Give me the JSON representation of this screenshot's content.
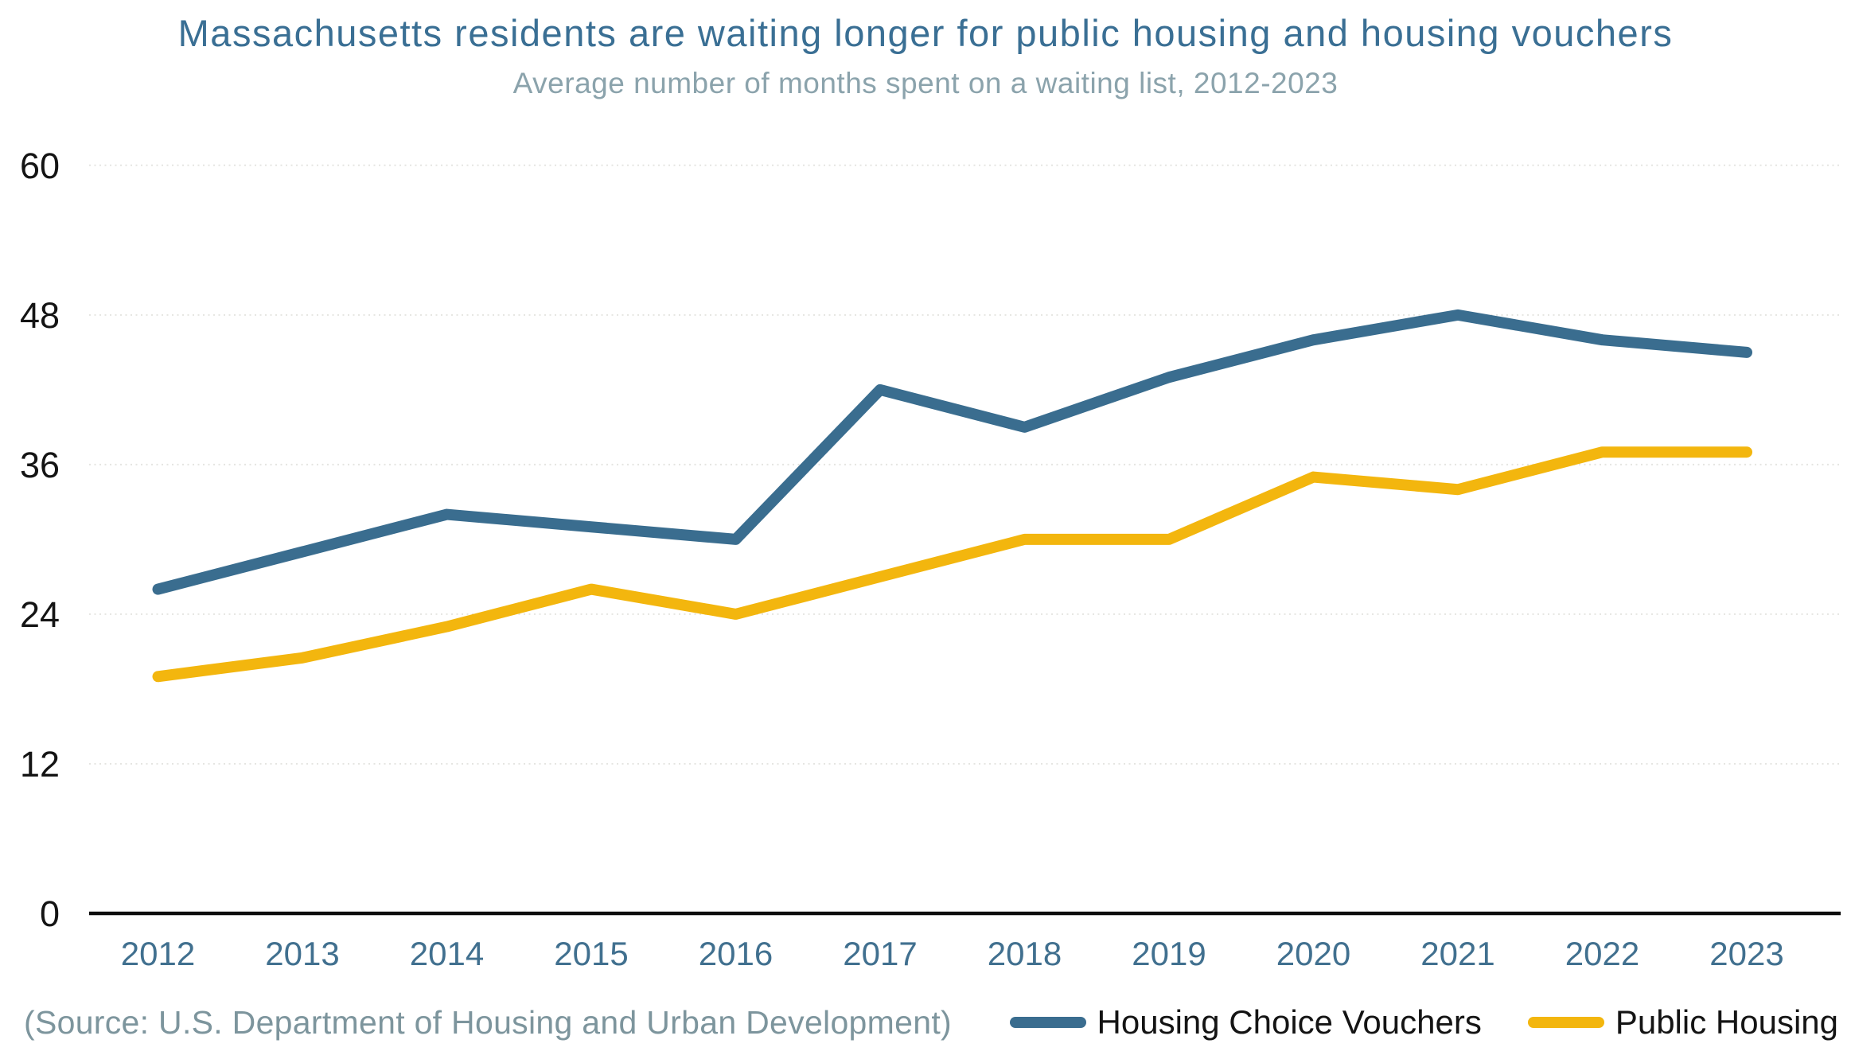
{
  "header": {
    "title": "Massachusetts residents are waiting longer for public housing and housing vouchers",
    "subtitle": "Average number of months spent on a waiting list, 2012-2023"
  },
  "chart_data": {
    "type": "line",
    "title": "Massachusetts residents are waiting longer for public housing and housing vouchers",
    "subtitle": "Average number of months spent on a waiting list, 2012-2023",
    "x": [
      2012,
      2013,
      2014,
      2015,
      2016,
      2017,
      2018,
      2019,
      2020,
      2021,
      2022,
      2023
    ],
    "series": [
      {
        "name": "Housing Choice Vouchers",
        "color": "#3A6D8F",
        "values": [
          26,
          29,
          32,
          31,
          30,
          42,
          39,
          43,
          46,
          48,
          46,
          45
        ]
      },
      {
        "name": "Public Housing",
        "color": "#F3B60E",
        "values": [
          19,
          20.5,
          23,
          26,
          24,
          27,
          30,
          30,
          35,
          34,
          37,
          37
        ]
      }
    ],
    "xlabel": "",
    "ylabel": "",
    "ylim": [
      0,
      60
    ],
    "yticks": [
      0,
      12,
      24,
      36,
      48,
      60
    ],
    "grid": "horizontal-dotted",
    "legend_position": "bottom-right"
  },
  "source": {
    "text": "(Source: U.S. Department of Housing and Urban Development)"
  },
  "colors": {
    "title": "#3A6F94",
    "subtitle": "#8BA3AC",
    "x_tick_labels": "#41708F",
    "y_tick_labels": "#141414",
    "gridline": "#E5E5E1",
    "axis": "#0D0D0D",
    "source_text": "#7D959D",
    "legend_text": "#141414"
  }
}
